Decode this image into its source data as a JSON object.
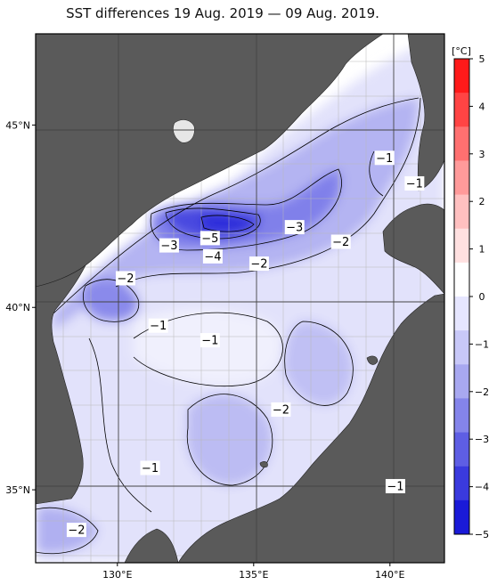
{
  "title": "SST differences 19 Aug. 2019 — 09 Aug. 2019.",
  "axes": {
    "lat_ticks": [
      {
        "label": "45°N",
        "value": 45
      },
      {
        "label": "40°N",
        "value": 40
      },
      {
        "label": "35°N",
        "value": 35
      }
    ],
    "lon_ticks": [
      {
        "label": "130°E",
        "value": 130
      },
      {
        "label": "135°E",
        "value": 135
      },
      {
        "label": "140°E",
        "value": 140
      }
    ],
    "lon_range": [
      127,
      142
    ],
    "lat_range": [
      33,
      47.5
    ],
    "grid": true
  },
  "colorbar": {
    "unit": "[°C]",
    "ticks": [
      "5",
      "4",
      "3",
      "2",
      "1",
      "0",
      "−1",
      "−2",
      "−3",
      "−4",
      "−5"
    ],
    "range": [
      -5,
      5
    ],
    "colors": [
      "#ff1a1a",
      "#ff4444",
      "#ff7070",
      "#ff9a9a",
      "#ffc0c0",
      "#ffe0e0",
      "#ffffff",
      "#e6e6ff",
      "#c8c8f8",
      "#a8a8f0",
      "#8484ea",
      "#5e5ee4",
      "#3a3ade",
      "#1a1ad8"
    ]
  },
  "colors": {
    "land": "#5a5a5a",
    "frame": "#000000"
  },
  "contour_labels": [
    {
      "text": "−1",
      "lon": 139.8,
      "lat": 44.1
    },
    {
      "text": "−1",
      "lon": 140.9,
      "lat": 43.4
    },
    {
      "text": "−3",
      "lon": 136.5,
      "lat": 42.2
    },
    {
      "text": "−2",
      "lon": 138.2,
      "lat": 41.8
    },
    {
      "text": "−5",
      "lon": 133.4,
      "lat": 41.9
    },
    {
      "text": "−3",
      "lon": 131.9,
      "lat": 41.7
    },
    {
      "text": "−4",
      "lon": 133.5,
      "lat": 41.4
    },
    {
      "text": "−2",
      "lon": 135.2,
      "lat": 41.2
    },
    {
      "text": "−2",
      "lon": 130.3,
      "lat": 40.8
    },
    {
      "text": "−1",
      "lon": 131.5,
      "lat": 39.5
    },
    {
      "text": "−1",
      "lon": 133.4,
      "lat": 39.1
    },
    {
      "text": "−2",
      "lon": 136.0,
      "lat": 37.2
    },
    {
      "text": "−1",
      "lon": 131.2,
      "lat": 35.6
    },
    {
      "text": "−1",
      "lon": 140.2,
      "lat": 35.1
    },
    {
      "text": "−2",
      "lon": 128.5,
      "lat": 33.9
    }
  ]
}
